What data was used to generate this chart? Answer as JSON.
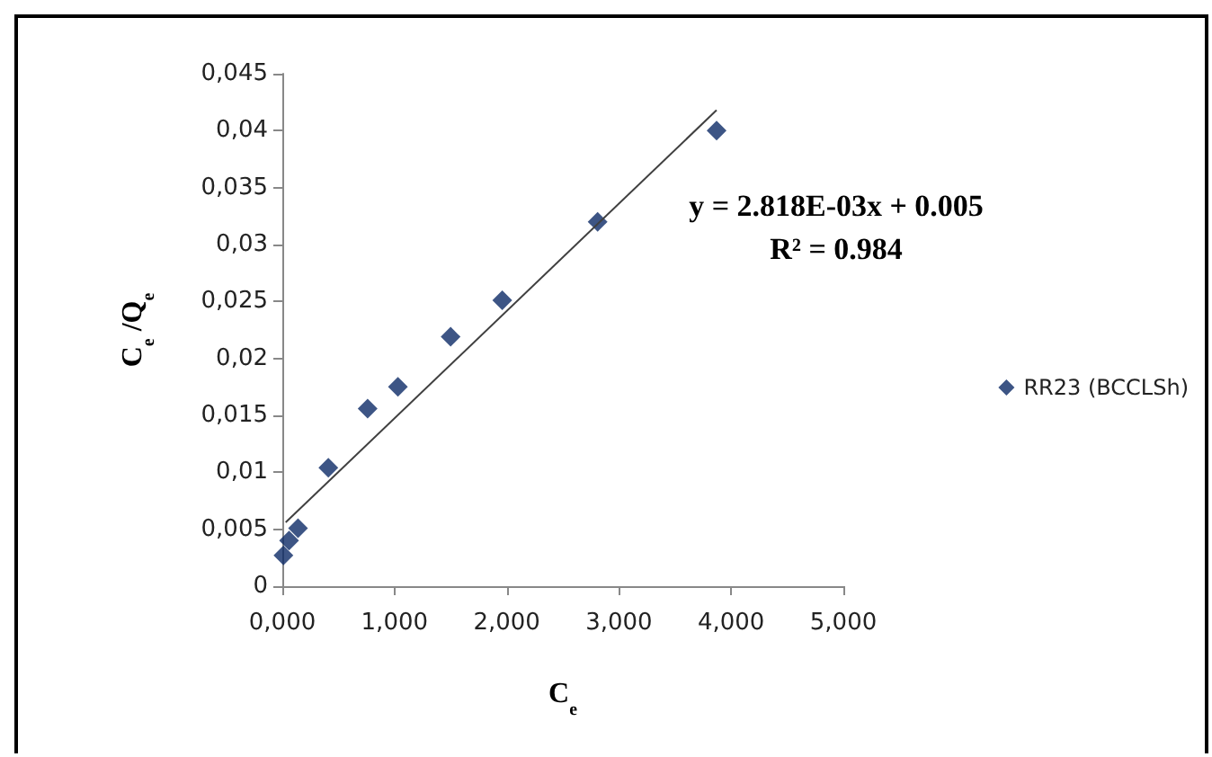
{
  "chart_data": {
    "type": "scatter",
    "xlabel": "C$_{e}$",
    "ylabel": "C$_{e}$ /Q$_{e}$",
    "xlim": [
      0,
      5
    ],
    "xticks": [
      {
        "value": 0,
        "label": "0,000"
      },
      {
        "value": 1,
        "label": "1,000"
      },
      {
        "value": 2,
        "label": "2,000"
      },
      {
        "value": 3,
        "label": "3,000"
      },
      {
        "value": 4,
        "label": "4,000"
      },
      {
        "value": 5,
        "label": "5,000"
      }
    ],
    "ylim": [
      0,
      0.045
    ],
    "yticks": [
      {
        "value": 0,
        "label": "0"
      },
      {
        "value": 0.005,
        "label": "0,005"
      },
      {
        "value": 0.01,
        "label": "0,01"
      },
      {
        "value": 0.015,
        "label": "0,015"
      },
      {
        "value": 0.02,
        "label": "0,02"
      },
      {
        "value": 0.025,
        "label": "0,025"
      },
      {
        "value": 0.03,
        "label": "0,03"
      },
      {
        "value": 0.035,
        "label": "0,035"
      },
      {
        "value": 0.04,
        "label": "0,04"
      },
      {
        "value": 0.045,
        "label": "0,045"
      }
    ],
    "series": [
      {
        "name": "RR23 (BCCLSh)",
        "color": "#0d2a66",
        "marker": "diamond",
        "x": [
          0.01,
          0.06,
          0.14,
          0.41,
          0.76,
          1.03,
          1.5,
          1.96,
          2.81,
          3.87
        ],
        "values": [
          0.0027,
          0.004,
          0.0051,
          0.0104,
          0.0156,
          0.0175,
          0.0219,
          0.0251,
          0.032,
          0.04
        ]
      },
      {
        "type": "line",
        "color": "#404040",
        "marker": "none",
        "x": [
          0.03,
          3.87
        ],
        "values": [
          0.0056,
          0.0418
        ]
      }
    ],
    "annotations": [
      "y = 2.818E-03x + 0.005",
      "R² = 0.984"
    ],
    "legend": "right",
    "grid": false
  }
}
